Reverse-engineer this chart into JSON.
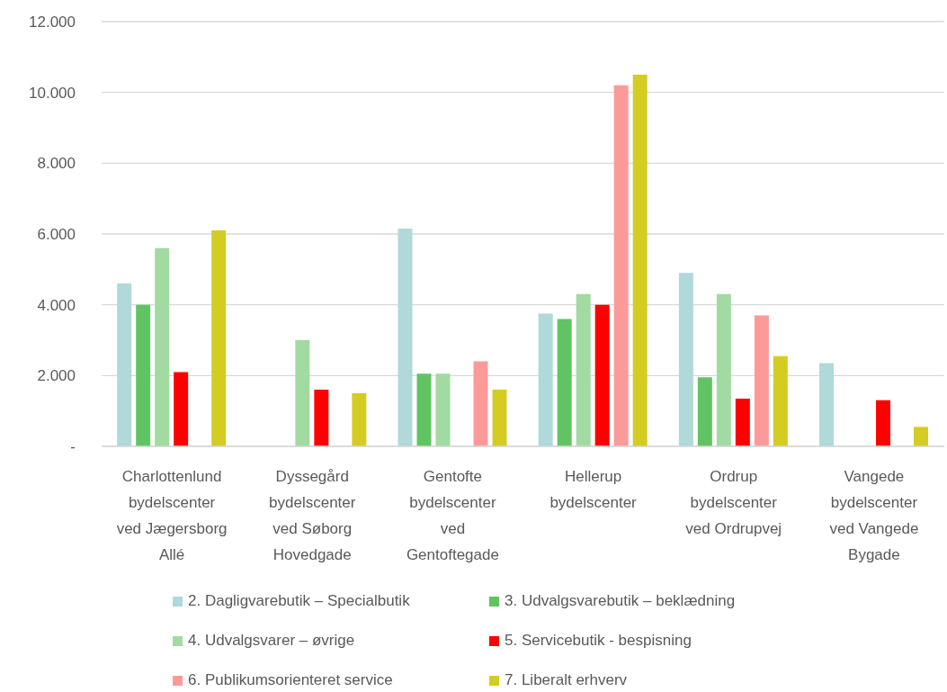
{
  "chart_data": {
    "type": "bar",
    "categories": [
      "Charlottenlund bydelscenter ved Jægersborg Allé",
      "Dyssegård bydelscenter ved Søborg Hovedgade",
      "Gentofte bydelscenter ved Gentoftegade",
      "Hellerup bydelscenter",
      "Ordrup bydelscenter ved Ordrupvej",
      "Vangede bydelscenter ved Vangede Bygade"
    ],
    "series": [
      {
        "name": "2. Dagligvarebutik – Specialbutik",
        "color": "#b0d9d9",
        "values": [
          4600,
          null,
          6150,
          3750,
          4900,
          2350
        ]
      },
      {
        "name": "3. Udvalgsvarebutik – beklædning",
        "color": "#61c462",
        "values": [
          4000,
          null,
          2050,
          3600,
          1950,
          null
        ]
      },
      {
        "name": "4. Udvalgsvarer – øvrige",
        "color": "#a1dba1",
        "values": [
          5600,
          3000,
          2050,
          4300,
          4300,
          null
        ]
      },
      {
        "name": "5. Servicebutik - bespisning",
        "color": "#ff0000",
        "values": [
          2100,
          1600,
          null,
          4000,
          1350,
          1300
        ]
      },
      {
        "name": "6. Publikumsorienteret service",
        "color": "#fc9a9a",
        "values": [
          null,
          null,
          2400,
          10200,
          3700,
          null
        ]
      },
      {
        "name": "7. Liberalt erhverv",
        "color": "#d4cc22",
        "values": [
          6100,
          1500,
          1600,
          10500,
          2550,
          550
        ]
      }
    ],
    "ylim": [
      0,
      12000
    ],
    "yticks": [
      {
        "value": 0,
        "label": "-"
      },
      {
        "value": 2000,
        "label": "2.000"
      },
      {
        "value": 4000,
        "label": "4.000"
      },
      {
        "value": 6000,
        "label": "6.000"
      },
      {
        "value": 8000,
        "label": "8.000"
      },
      {
        "value": 10000,
        "label": "10.000"
      },
      {
        "value": 12000,
        "label": "12.000"
      }
    ],
    "grid": "y",
    "legend": "bottom"
  }
}
